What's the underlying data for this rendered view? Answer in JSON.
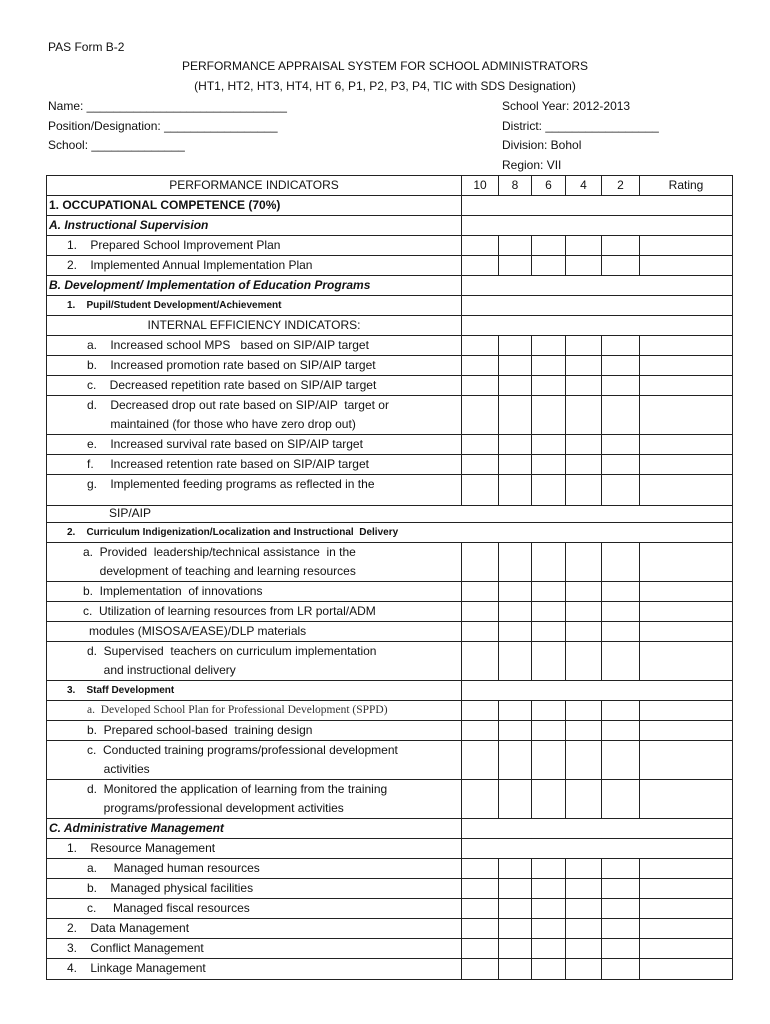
{
  "form_code": "PAS Form B-2",
  "title": "PERFORMANCE APPRAISAL SYSTEM FOR SCHOOL ADMINISTRATORS",
  "subtitle": "(HT1, HT2, HT3, HT4, HT 6,  P1, P2, P3, P4, TIC with SDS Designation)",
  "fields_left": [
    "Name: ______________________________",
    "Position/Designation: _________________",
    "School:  ______________"
  ],
  "fields_right": [
    "School   Year: 2012-2013",
    "District: _________________",
    "Division:  Bohol",
    "Region: VII"
  ],
  "table": {
    "headers": [
      "PERFORMANCE INDICATORS",
      "10",
      "8",
      "6",
      "4",
      "2",
      "Rating"
    ],
    "rows": [
      {
        "kind": "merged",
        "style": "b",
        "indent": 0,
        "lines": [
          "1. OCCUPATIONAL COMPETENCE (70%)"
        ]
      },
      {
        "kind": "merged",
        "style": "i",
        "indent": 0,
        "lines": [
          "A. Instructional Supervision"
        ]
      },
      {
        "kind": "grid",
        "indent": 18,
        "lines": [
          "1.    Prepared School Improvement Plan"
        ]
      },
      {
        "kind": "grid",
        "indent": 18,
        "lines": [
          "2.    Implemented Annual Implementation Plan"
        ]
      },
      {
        "kind": "merged",
        "style": "i",
        "indent": 0,
        "lines": [
          "B. Development/ Implementation of Education Programs"
        ]
      },
      {
        "kind": "merged",
        "style": "sm",
        "indent": 18,
        "lines": [
          "1.    Pupil/Student Development/Achievement"
        ]
      },
      {
        "kind": "merged",
        "style": "center",
        "indent": 0,
        "lines": [
          "INTERNAL EFFICIENCY INDICATORS:"
        ]
      },
      {
        "kind": "grid",
        "indent": 38,
        "lines": [
          "a.    Increased school MPS   based on SIP/AIP target"
        ]
      },
      {
        "kind": "grid",
        "indent": 38,
        "lines": [
          "b.    Increased promotion rate based on SIP/AIP target"
        ]
      },
      {
        "kind": "grid",
        "indent": 38,
        "lines": [
          "c.    Decreased repetition rate based on SIP/AIP target"
        ]
      },
      {
        "kind": "grid",
        "indent": 38,
        "lines": [
          "d.    Decreased drop out rate based on SIP/AIP  target or",
          "       maintained (for those who have zero drop out)"
        ]
      },
      {
        "kind": "grid",
        "indent": 38,
        "lines": [
          "e.    Increased survival rate based on SIP/AIP target"
        ]
      },
      {
        "kind": "grid",
        "indent": 38,
        "lines": [
          "f.     Increased retention rate based on SIP/AIP target"
        ]
      },
      {
        "kind": "grid",
        "indent": 38,
        "lines": [
          "g.    Implemented feeding programs as reflected in the"
        ]
      },
      {
        "kind": "full",
        "indent": 60,
        "lines": [
          "SIP/AIP"
        ]
      },
      {
        "kind": "full",
        "style": "sm",
        "indent": 18,
        "lines": [
          "2.    Curriculum Indigenization/Localization and Instructional  Delivery"
        ]
      },
      {
        "kind": "grid",
        "indent": 34,
        "lines": [
          "a.  Provided  leadership/technical assistance  in the",
          "     development of teaching and learning resources"
        ]
      },
      {
        "kind": "grid",
        "indent": 34,
        "lines": [
          "b.  Implementation  of innovations"
        ]
      },
      {
        "kind": "grid",
        "indent": 34,
        "lines": [
          "c.  Utilization of learning resources from LR portal/ADM"
        ]
      },
      {
        "kind": "grid",
        "indent": 40,
        "lines": [
          "modules (MISOSA/EASE)/DLP materials"
        ]
      },
      {
        "kind": "grid",
        "indent": 38,
        "lines": [
          "d.  Supervised  teachers on curriculum implementation",
          "     and instructional delivery"
        ]
      },
      {
        "kind": "merged",
        "style": "sm",
        "indent": 18,
        "lines": [
          "3.    Staff Development"
        ]
      },
      {
        "kind": "grid",
        "style": "serif",
        "indent": 38,
        "lines": [
          "a.  Developed School Plan for Professional Development (SPPD)"
        ]
      },
      {
        "kind": "grid",
        "indent": 38,
        "lines": [
          "b.  Prepared school-based  training design"
        ]
      },
      {
        "kind": "grid",
        "indent": 38,
        "lines": [
          "c.  Conducted training programs/professional development",
          "     activities"
        ]
      },
      {
        "kind": "grid",
        "indent": 38,
        "lines": [
          "d.  Monitored the application of learning from the training",
          "     programs/professional development activities"
        ]
      },
      {
        "kind": "merged",
        "style": "i",
        "indent": 0,
        "lines": [
          "C. Administrative Management"
        ]
      },
      {
        "kind": "merged",
        "indent": 18,
        "lines": [
          "1.    Resource Management"
        ]
      },
      {
        "kind": "grid",
        "indent": 38,
        "lines": [
          "a.     Managed human resources"
        ]
      },
      {
        "kind": "grid",
        "indent": 38,
        "lines": [
          "b.    Managed physical facilities"
        ]
      },
      {
        "kind": "grid",
        "indent": 38,
        "lines": [
          "c.     Managed fiscal resources"
        ]
      },
      {
        "kind": "grid",
        "indent": 18,
        "lines": [
          "2.    Data Management"
        ]
      },
      {
        "kind": "grid",
        "indent": 18,
        "lines": [
          "3.    Conflict Management"
        ]
      },
      {
        "kind": "grid",
        "indent": 18,
        "lines": [
          "4.    Linkage Management"
        ]
      }
    ]
  }
}
